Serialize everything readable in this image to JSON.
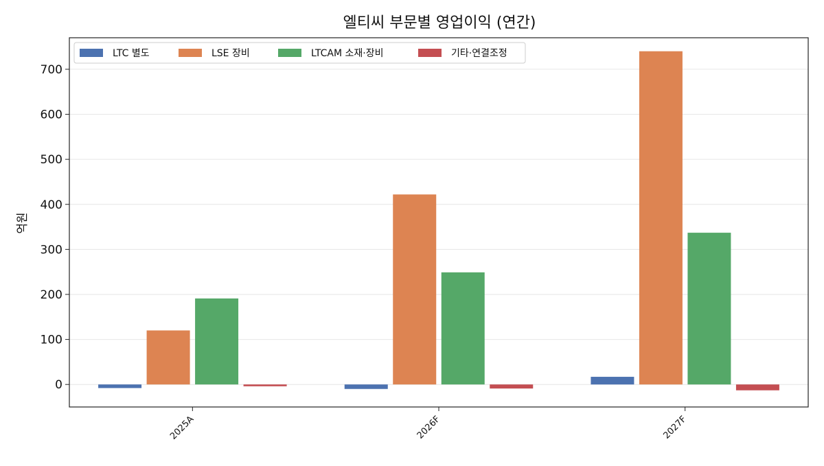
{
  "chart_data": {
    "type": "bar",
    "title": "엘티씨 부문별 영업이익 (연간)",
    "xlabel": "",
    "ylabel": "억원",
    "categories": [
      "2025A",
      "2026F",
      "2027F"
    ],
    "ylim": [
      -50,
      770
    ],
    "yticks": [
      0,
      100,
      200,
      300,
      400,
      500,
      600,
      700
    ],
    "grid": true,
    "legend_position": "top-left",
    "series": [
      {
        "name": "LTC 별도",
        "color": "#4c72b0",
        "values": [
          -8,
          -10,
          17
        ]
      },
      {
        "name": "LSE 장비",
        "color": "#dd8452",
        "values": [
          120,
          422,
          740
        ]
      },
      {
        "name": "LTCAM 소재·장비",
        "color": "#55a868",
        "values": [
          191,
          249,
          337
        ]
      },
      {
        "name": "기타·연결조정",
        "color": "#c44e52",
        "values": [
          -4,
          -9,
          -13
        ]
      }
    ]
  }
}
